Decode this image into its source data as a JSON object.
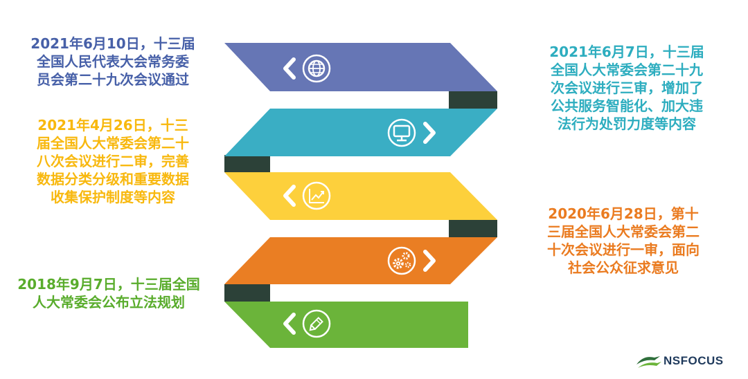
{
  "colors": {
    "band1": "#6676b5",
    "band2": "#3aaec4",
    "band3": "#fdd03c",
    "band4": "#ea7e23",
    "band5": "#6bb43a",
    "connector": "#2c4138",
    "text1": "#4760a8",
    "text2": "#f8b80e",
    "text3": "#59ac2c",
    "text4": "#2dadbf",
    "text5": "#ea7b20"
  },
  "notes": {
    "n1": {
      "lines": [
        "2021年6月10日，十三届",
        "全国人民代表大会常务委",
        "员会第二十九次会议通过"
      ]
    },
    "n2": {
      "lines": [
        "2021年4月26日，十三",
        "届全国人大常委会第二十",
        "八次会议进行二审，完善",
        "数据分类分级和重要数据",
        "收集保护制度等内容"
      ]
    },
    "n3": {
      "lines": [
        "2018年9月7日，十三届全国",
        "人大常委会公布立法规划"
      ]
    },
    "n4": {
      "lines": [
        "2021年6月7日，十三届",
        "全国人大常委会第二十九",
        "次会议进行三审，增加了",
        "公共服务智能化、加大违",
        "法行为处罚力度等内容"
      ]
    },
    "n5": {
      "lines": [
        "2020年6月28日，第十",
        "三届全国人大常委会第二",
        "十次会议进行一审，面向",
        "社会公众征求意见"
      ]
    }
  },
  "icons": [
    "globe-icon",
    "monitor-icon",
    "chart-icon",
    "gears-icon",
    "pencil-icon"
  ],
  "logo": {
    "text": "NSFOCUS"
  }
}
